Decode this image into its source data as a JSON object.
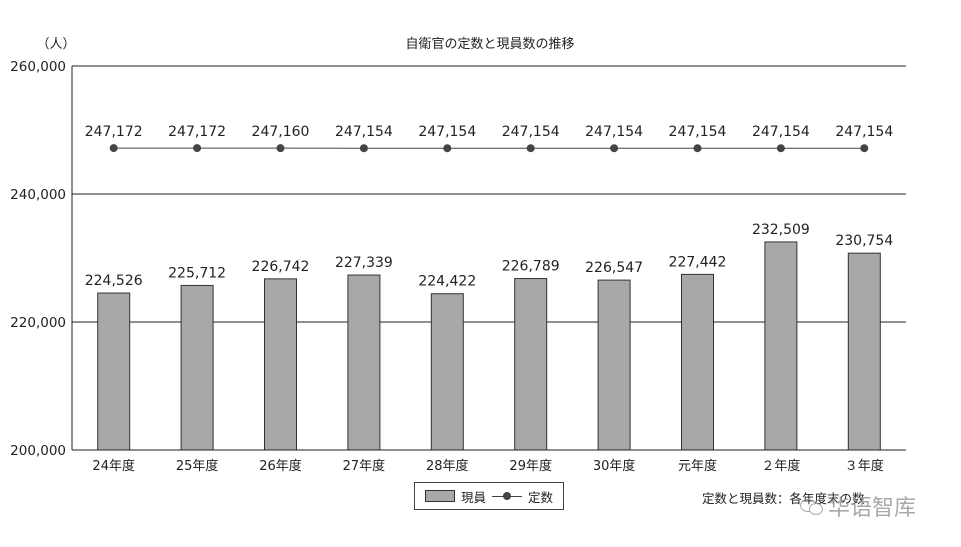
{
  "chart_data": {
    "type": "bar",
    "title": "自衛官の定数と現員数の推移",
    "ylabel": "（人）",
    "ylim": [
      200000,
      260000
    ],
    "yticks": [
      200000,
      220000,
      240000,
      260000
    ],
    "ytick_labels": [
      "200,000",
      "220,000",
      "240,000",
      "260,000"
    ],
    "categories": [
      "24年度",
      "25年度",
      "26年度",
      "27年度",
      "28年度",
      "29年度",
      "30年度",
      "元年度",
      "２年度",
      "３年度"
    ],
    "grid": true,
    "series": [
      {
        "name": "現員",
        "kind": "bar",
        "color": "#a8a8aa",
        "values": [
          224526,
          225712,
          226742,
          227339,
          224422,
          226789,
          226547,
          227442,
          232509,
          230754
        ],
        "labels": [
          "224,526",
          "225,712",
          "226,742",
          "227,339",
          "224,422",
          "226,789",
          "226,547",
          "227,442",
          "232,509",
          "230,754"
        ]
      },
      {
        "name": "定数",
        "kind": "line",
        "color": "#444444",
        "values": [
          247172,
          247172,
          247160,
          247154,
          247154,
          247154,
          247154,
          247154,
          247154,
          247154
        ],
        "labels": [
          "247,172",
          "247,172",
          "247,160",
          "247,154",
          "247,154",
          "247,154",
          "247,154",
          "247,154",
          "247,154",
          "247,154"
        ]
      }
    ],
    "legend": {
      "position": "bottom-center",
      "bar_label": "現員",
      "line_label": "定数"
    },
    "note": "定数と現員数：各年度末の数"
  },
  "watermark": {
    "text": "华语智库"
  }
}
